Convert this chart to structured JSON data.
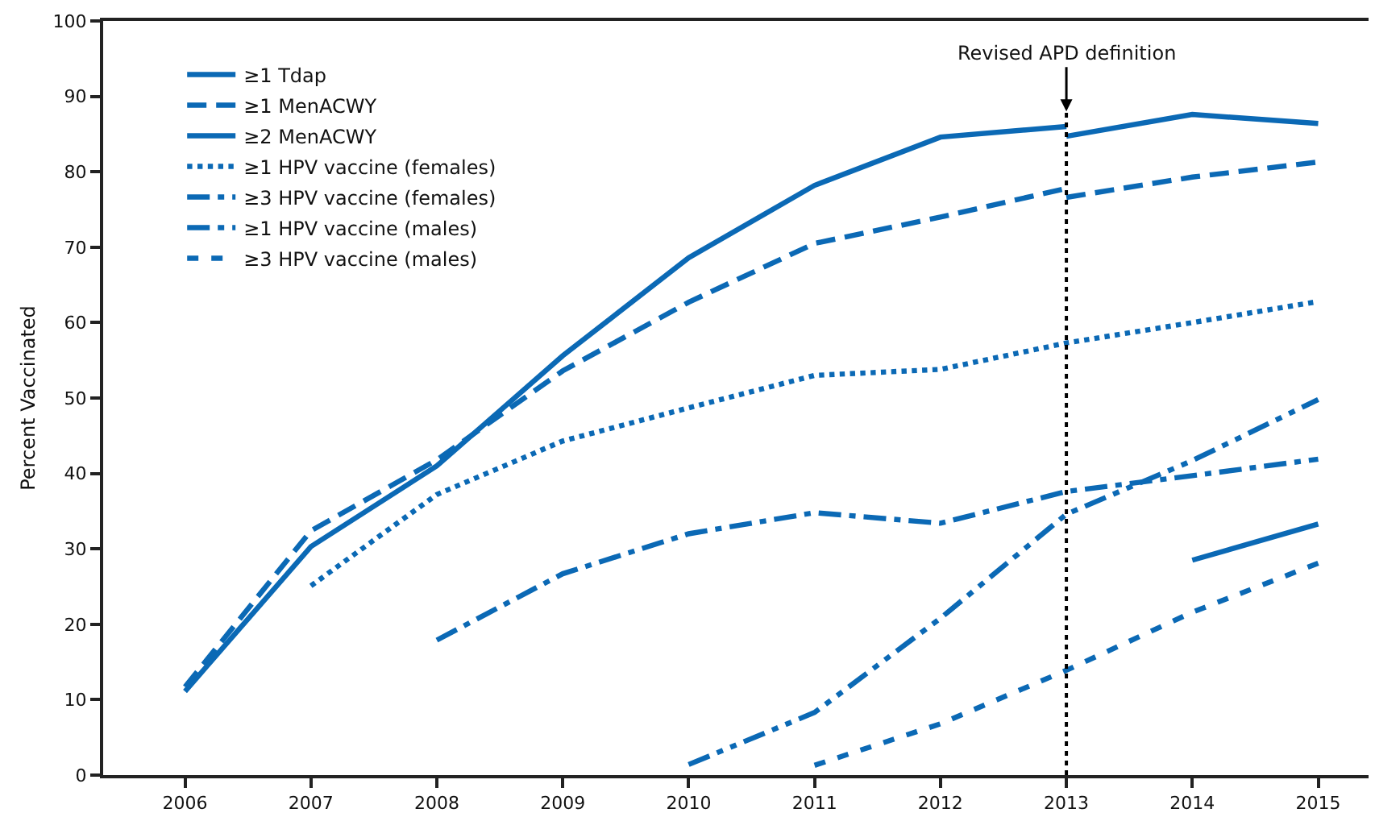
{
  "chart_data": {
    "type": "line",
    "ylabel": "Percent Vaccinated",
    "ylim": [
      0,
      100
    ],
    "yticks": [
      0,
      10,
      20,
      30,
      40,
      50,
      60,
      70,
      80,
      90,
      100
    ],
    "xlim": [
      2005.35,
      2015.4
    ],
    "xticks": [
      2006,
      2007,
      2008,
      2009,
      2010,
      2011,
      2012,
      2013,
      2014,
      2015
    ],
    "grid": false,
    "legend": "top left",
    "marker": "none",
    "series": [
      {
        "name": "≥1 Tdap",
        "color": "#0b69b5",
        "line_style": "solid",
        "x": [
          2006,
          2007,
          2008,
          2009,
          2010,
          2011,
          2012,
          2013
        ],
        "values": [
          11.1,
          30.3,
          41.0,
          55.6,
          68.6,
          78.2,
          84.6,
          86.0
        ]
      },
      {
        "name": "≥1 MenACWY",
        "color": "#0b69b5",
        "line_style": "dashed",
        "x": [
          2006,
          2007,
          2008,
          2009,
          2010,
          2011,
          2012,
          2013
        ],
        "values": [
          11.7,
          32.4,
          41.8,
          53.6,
          62.7,
          70.5,
          74.0,
          77.8
        ]
      },
      {
        "name": "≥2 MenACWY",
        "color": "#0b69b5",
        "line_style": "solid",
        "x": [
          2014,
          2015
        ],
        "values": [
          28.5,
          33.3
        ]
      },
      {
        "name": "≥1 HPV vaccine (females)",
        "color": "#0b69b5",
        "line_style": "dotted",
        "x": [
          2007,
          2008,
          2009,
          2010,
          2011,
          2012,
          2013,
          2014,
          2015
        ],
        "values": [
          25.1,
          37.2,
          44.3,
          48.7,
          53.0,
          53.8,
          57.3,
          60.0,
          62.8
        ]
      },
      {
        "name": "≥3 HPV vaccine (females)",
        "color": "#0b69b5",
        "line_style": "dashdot",
        "x": [
          2008,
          2009,
          2010,
          2011,
          2012,
          2013,
          2014,
          2015
        ],
        "values": [
          17.9,
          26.7,
          32.0,
          34.8,
          33.4,
          37.6,
          39.7,
          41.9
        ]
      },
      {
        "name": "≥1 HPV vaccine (males)",
        "color": "#0b69b5",
        "line_style": "dashdotdot",
        "x": [
          2010,
          2011,
          2012,
          2013,
          2014,
          2015
        ],
        "values": [
          1.4,
          8.3,
          20.8,
          34.6,
          41.7,
          49.8
        ]
      },
      {
        "name": "≥3 HPV vaccine (males)",
        "color": "#0b69b5",
        "line_style": "shortdash",
        "x": [
          2011,
          2012,
          2013,
          2014,
          2015
        ],
        "values": [
          1.3,
          6.8,
          13.9,
          21.6,
          28.1
        ]
      },
      {
        "color": "#0b69b5",
        "line_style": "solid",
        "x": [
          2013,
          2014,
          2015
        ],
        "values": [
          84.7,
          87.6,
          86.4
        ]
      },
      {
        "color": "#0b69b5",
        "line_style": "dashed",
        "x": [
          2013,
          2014,
          2015
        ],
        "values": [
          76.6,
          79.3,
          81.3
        ]
      }
    ],
    "ref_lines": [
      {
        "axis": "x",
        "value": 2013,
        "label": "Revised APD definition",
        "color": "#000000",
        "line_style": "dotted"
      }
    ]
  }
}
